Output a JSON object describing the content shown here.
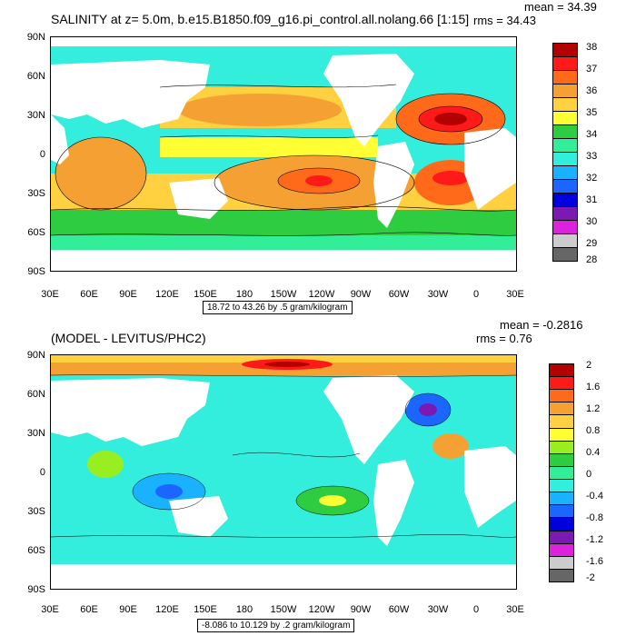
{
  "top": {
    "title": "SALINITY at z=   5.0m, b.e15.B1850.f09_g16.pi_control.all.nolang.66 [1:15]",
    "mean": "mean = 34.39",
    "rms": "rms = 34.43",
    "caption": "18.72 to 43.26 by .5 gram/kilogram",
    "colorbar_labels": [
      "38",
      "37",
      "36",
      "35",
      "34",
      "33",
      "32",
      "31",
      "30",
      "29",
      "28"
    ],
    "colorbar_colors": [
      "#b30000",
      "#ff1a1a",
      "#ff6a1a",
      "#f5a033",
      "#ffd040",
      "#ffff33",
      "#2ecc40",
      "#33ee99",
      "#33eedd",
      "#1ab2ff",
      "#1a66ff",
      "#0000dd",
      "#7a1ab3",
      "#dd22dd",
      "#cccccc",
      "#666666"
    ]
  },
  "bottom": {
    "title": "(MODEL - LEVITUS/PHC2)",
    "mean": "mean = -0.2816",
    "rms": "rms = 0.76",
    "caption": "-8.086 to 10.129 by .2 gram/kilogram",
    "colorbar_labels": [
      "2",
      "1.6",
      "1.2",
      "0.8",
      "0.4",
      "0",
      "-0.4",
      "-0.8",
      "-1.2",
      "-1.6",
      "-2"
    ],
    "colorbar_colors": [
      "#b30000",
      "#ff1a1a",
      "#ff6a1a",
      "#f5a033",
      "#ffd040",
      "#ffff33",
      "#99ee22",
      "#2ecc40",
      "#33ee99",
      "#33eedd",
      "#1ab2ff",
      "#1a66ff",
      "#0000dd",
      "#7a1ab3",
      "#dd22dd",
      "#cccccc",
      "#666666"
    ]
  },
  "axes": {
    "lat_labels": [
      "90N",
      "60N",
      "30N",
      "0",
      "30S",
      "60S",
      "90S"
    ],
    "lon_labels": [
      "30E",
      "60E",
      "90E",
      "120E",
      "150E",
      "180",
      "150W",
      "120W",
      "90W",
      "60W",
      "30W",
      "0",
      "30E"
    ]
  },
  "colors": {
    "land": "#ffffff",
    "contour": "#000000"
  }
}
